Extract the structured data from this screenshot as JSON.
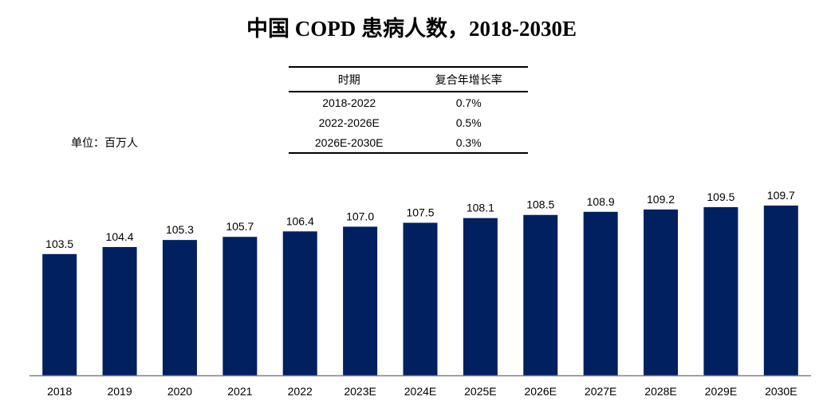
{
  "title": "中国 COPD 患病人数，2018-2030E",
  "unit_label": "单位：百万人",
  "cagr_table": {
    "headers": [
      "时期",
      "复合年增长率"
    ],
    "rows": [
      {
        "period": "2018-2022",
        "rate": "0.7%"
      },
      {
        "period": "2022-2026E",
        "rate": "0.5%"
      },
      {
        "period": "2026E-2030E",
        "rate": "0.3%"
      }
    ]
  },
  "chart_data": {
    "type": "bar",
    "categories": [
      "2018",
      "2019",
      "2020",
      "2021",
      "2022",
      "2023E",
      "2024E",
      "2025E",
      "2026E",
      "2027E",
      "2028E",
      "2029E",
      "2030E"
    ],
    "values": [
      103.5,
      104.4,
      105.3,
      105.7,
      106.4,
      107.0,
      107.5,
      108.1,
      108.5,
      108.9,
      109.2,
      109.5,
      109.7
    ],
    "value_labels": [
      "103.5",
      "104.4",
      "105.3",
      "105.7",
      "106.4",
      "107.0",
      "107.5",
      "108.1",
      "108.5",
      "108.9",
      "109.2",
      "109.5",
      "109.7"
    ],
    "ylim": [
      88,
      110
    ],
    "bar_color": "#002060",
    "axis_color": "#7f7f7f",
    "grid": false,
    "legend": "none"
  }
}
